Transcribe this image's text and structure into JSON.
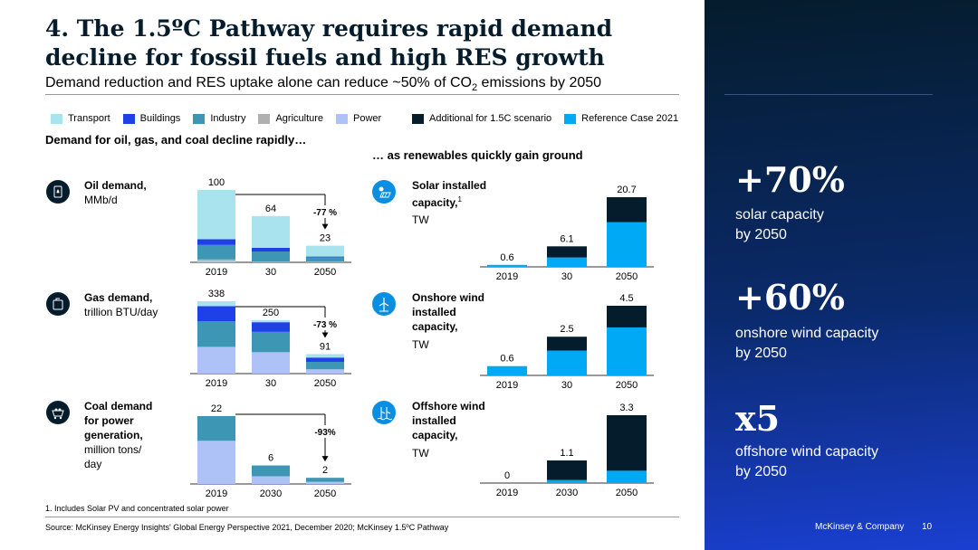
{
  "title": "4. The 1.5ºC Pathway requires rapid demand decline for fossil fuels and high RES growth",
  "subtitle_pre": "Demand reduction and RES uptake alone can reduce ~50% of CO",
  "subtitle_sub": "2",
  "subtitle_post": " emissions by 2050",
  "colors": {
    "transport": "#a9e3ee",
    "buildings": "#1f40e6",
    "industry": "#3c96b4",
    "agriculture": "#b0b0b0",
    "power": "#aec2f7",
    "additional": "#051c2c",
    "reference": "#00a9f4"
  },
  "legend_left": [
    "Transport",
    "Buildings",
    "Industry",
    "Agriculture",
    "Power"
  ],
  "legend_right": [
    "Additional for 1.5C scenario",
    "Reference Case 2021"
  ],
  "left_heading": "Demand for oil, gas, and coal decline rapidly…",
  "right_heading": "… as renewables quickly gain ground",
  "oil": {
    "title": "Oil demand,",
    "unit": "MMb/d",
    "change": "-77 %"
  },
  "gas": {
    "title": "Gas demand,",
    "unit": "trillion BTU/day",
    "change": "-73 %"
  },
  "coal": {
    "title1": "Coal demand",
    "title2": "for power",
    "title3": "generation,",
    "unit1": "million tons/",
    "unit2": "day",
    "change": "-93%"
  },
  "solar": {
    "title1": "Solar installed",
    "title2": "capacity,",
    "sup": "1",
    "unit": "TW"
  },
  "onshore": {
    "title1": "Onshore wind",
    "title2": "installed",
    "title3": "capacity,",
    "unit": "TW"
  },
  "offshore": {
    "title1": "Offshore wind",
    "title2": "installed",
    "title3": "capacity,",
    "unit": "TW"
  },
  "chart_data": [
    {
      "type": "bar",
      "stacked": true,
      "title": "Oil demand, MMb/d",
      "categories": [
        "2019",
        "30",
        "2050"
      ],
      "totals": [
        "100",
        "64",
        "23"
      ],
      "series": [
        {
          "name": "Power",
          "values": [
            2,
            0,
            0
          ]
        },
        {
          "name": "Agriculture",
          "values": [
            2,
            1,
            1
          ]
        },
        {
          "name": "Industry",
          "values": [
            20,
            14,
            6
          ]
        },
        {
          "name": "Buildings",
          "values": [
            8,
            5,
            1
          ]
        },
        {
          "name": "Transport",
          "values": [
            68,
            44,
            15
          ]
        }
      ],
      "annotation": "-77 %"
    },
    {
      "type": "bar",
      "stacked": true,
      "title": "Gas demand, trillion BTU/day",
      "categories": [
        "2019",
        "30",
        "2050"
      ],
      "totals": [
        "338",
        "250",
        "91"
      ],
      "series": [
        {
          "name": "Power",
          "values": [
            125,
            100,
            20
          ]
        },
        {
          "name": "Industry",
          "values": [
            120,
            95,
            35
          ]
        },
        {
          "name": "Buildings",
          "values": [
            70,
            45,
            20
          ]
        },
        {
          "name": "Transport",
          "values": [
            23,
            10,
            16
          ]
        }
      ],
      "annotation": "-73 %"
    },
    {
      "type": "bar",
      "stacked": true,
      "title": "Coal demand for power generation, million tons/day",
      "categories": [
        "2019",
        "2030",
        "2050"
      ],
      "totals": [
        "22",
        "6",
        "2"
      ],
      "series": [
        {
          "name": "Power",
          "values": [
            14,
            2.5,
            0.7
          ]
        },
        {
          "name": "Industry",
          "values": [
            8,
            3.5,
            1.3
          ]
        }
      ],
      "annotation": "-93%"
    },
    {
      "type": "bar",
      "stacked": true,
      "title": "Solar installed capacity, TW",
      "categories": [
        "2019",
        "30",
        "2050"
      ],
      "totals": [
        "0.6",
        "6.1",
        "20.7"
      ],
      "series": [
        {
          "name": "Reference Case 2021",
          "values": [
            0.6,
            2.8,
            13.3
          ]
        },
        {
          "name": "Additional for 1.5C scenario",
          "values": [
            0,
            3.3,
            7.4
          ]
        }
      ]
    },
    {
      "type": "bar",
      "stacked": true,
      "title": "Onshore wind installed capacity, TW",
      "categories": [
        "2019",
        "30",
        "2050"
      ],
      "totals": [
        "0.6",
        "2.5",
        "4.5"
      ],
      "series": [
        {
          "name": "Reference Case 2021",
          "values": [
            0.6,
            1.6,
            3.1
          ]
        },
        {
          "name": "Additional for 1.5C scenario",
          "values": [
            0,
            0.9,
            1.4
          ]
        }
      ]
    },
    {
      "type": "bar",
      "stacked": true,
      "title": "Offshore wind installed capacity, TW",
      "categories": [
        "2019",
        "2030",
        "2050"
      ],
      "totals": [
        "0",
        "1.1",
        "3.3"
      ],
      "series": [
        {
          "name": "Reference Case 2021",
          "values": [
            0,
            0.15,
            0.6
          ]
        },
        {
          "name": "Additional for 1.5C scenario",
          "values": [
            0,
            0.95,
            2.7
          ]
        }
      ]
    }
  ],
  "side": [
    {
      "big": "+70%",
      "sub1": "solar capacity",
      "sub2": "by 2050"
    },
    {
      "big": "+60%",
      "sub1": "onshore wind capacity",
      "sub2": "by 2050"
    },
    {
      "big": "x5",
      "sub1": "offshore wind capacity",
      "sub2": "by 2050"
    }
  ],
  "footnote": "1. Includes Solar PV and concentrated solar power",
  "source": "Source: McKinsey Energy Insights' Global Energy Perspective 2021, December 2020; McKinsey 1.5ºC Pathway",
  "brand": "McKinsey & Company",
  "page": "10"
}
